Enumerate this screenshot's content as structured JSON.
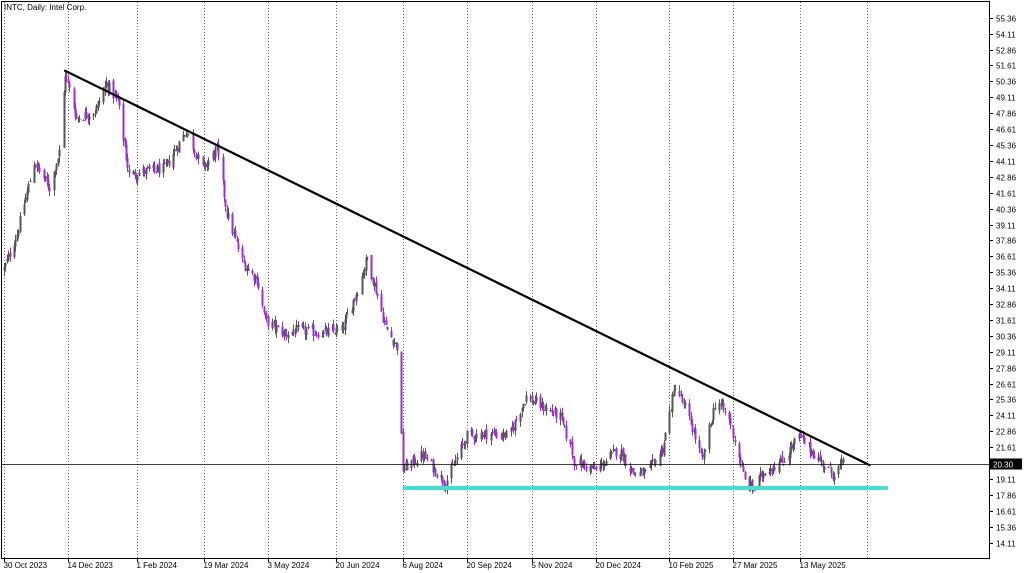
{
  "chart_data": {
    "type": "candlestick",
    "title": "INTC, Daily:  Intel Corp.",
    "xlabel": "",
    "ylabel": "",
    "ylim": [
      12.9,
      56.6
    ],
    "grid": "vertical dotted at date ticks",
    "x_ticks": [
      "30 Oct 2023",
      "14 Dec 2023",
      "1 Feb 2024",
      "19 Mar 2024",
      "3 May 2024",
      "20 Jun 2024",
      "6 Aug 2024",
      "20 Sep 2024",
      "5 Nov 2024",
      "20 Dec 2024",
      "10 Feb 2025",
      "27 Mar 2025",
      "13 May 2025"
    ],
    "y_ticks": [
      "55.36",
      "54.11",
      "52.86",
      "51.61",
      "50.36",
      "49.11",
      "47.86",
      "46.61",
      "45.36",
      "44.11",
      "42.86",
      "41.61",
      "40.36",
      "39.11",
      "37.86",
      "36.61",
      "35.36",
      "34.11",
      "32.86",
      "31.61",
      "30.36",
      "29.11",
      "27.86",
      "26.61",
      "25.36",
      "24.11",
      "22.86",
      "21.61",
      "19.11",
      "17.86",
      "16.61",
      "15.36",
      "14.11"
    ],
    "current_price": "20.30",
    "trendlines": [
      {
        "label": "descending resistance",
        "from": {
          "date": "2023-12-12",
          "price": 51.2
        },
        "to": {
          "date": "2025-07-01",
          "price": 20.2
        },
        "color": "#000000"
      },
      {
        "label": "horizontal support",
        "from": {
          "date": "2024-08-06",
          "price": 18.4
        },
        "to": {
          "date": "2025-07-14",
          "price": 18.4
        },
        "color": "#40e0d0"
      }
    ],
    "price_path": [
      {
        "date": "2023-10-30",
        "close": 35.6
      },
      {
        "date": "2023-11-08",
        "close": 38.4
      },
      {
        "date": "2023-11-20",
        "close": 44.0
      },
      {
        "date": "2023-12-01",
        "close": 42.0
      },
      {
        "date": "2023-12-08",
        "close": 44.8
      },
      {
        "date": "2023-12-12",
        "close": 51.0
      },
      {
        "date": "2023-12-20",
        "close": 47.5
      },
      {
        "date": "2024-01-02",
        "close": 48.0
      },
      {
        "date": "2024-01-10",
        "close": 50.2
      },
      {
        "date": "2024-01-18",
        "close": 48.8
      },
      {
        "date": "2024-01-26",
        "close": 43.0
      },
      {
        "date": "2024-02-02",
        "close": 43.2
      },
      {
        "date": "2024-02-20",
        "close": 43.5
      },
      {
        "date": "2024-03-06",
        "close": 46.5
      },
      {
        "date": "2024-03-18",
        "close": 43.5
      },
      {
        "date": "2024-03-28",
        "close": 45.0
      },
      {
        "date": "2024-04-04",
        "close": 40.0
      },
      {
        "date": "2024-04-15",
        "close": 36.2
      },
      {
        "date": "2024-04-25",
        "close": 34.8
      },
      {
        "date": "2024-05-01",
        "close": 31.6
      },
      {
        "date": "2024-05-15",
        "close": 30.5
      },
      {
        "date": "2024-05-24",
        "close": 30.8
      },
      {
        "date": "2024-06-10",
        "close": 30.6
      },
      {
        "date": "2024-06-24",
        "close": 30.8
      },
      {
        "date": "2024-07-05",
        "close": 34.0
      },
      {
        "date": "2024-07-12",
        "close": 36.5
      },
      {
        "date": "2024-07-25",
        "close": 31.0
      },
      {
        "date": "2024-08-02",
        "close": 29.5
      },
      {
        "date": "2024-08-06",
        "close": 19.9
      },
      {
        "date": "2024-08-20",
        "close": 21.0
      },
      {
        "date": "2024-09-05",
        "close": 18.8
      },
      {
        "date": "2024-09-20",
        "close": 22.5
      },
      {
        "date": "2024-10-05",
        "close": 22.7
      },
      {
        "date": "2024-10-20",
        "close": 22.5
      },
      {
        "date": "2024-11-01",
        "close": 25.6
      },
      {
        "date": "2024-11-12",
        "close": 24.8
      },
      {
        "date": "2024-11-25",
        "close": 24.0
      },
      {
        "date": "2024-12-05",
        "close": 20.5
      },
      {
        "date": "2024-12-20",
        "close": 19.8
      },
      {
        "date": "2025-01-05",
        "close": 21.5
      },
      {
        "date": "2025-01-15",
        "close": 19.6
      },
      {
        "date": "2025-01-25",
        "close": 19.5
      },
      {
        "date": "2025-02-05",
        "close": 21.5
      },
      {
        "date": "2025-02-14",
        "close": 26.5
      },
      {
        "date": "2025-02-25",
        "close": 23.5
      },
      {
        "date": "2025-03-05",
        "close": 20.5
      },
      {
        "date": "2025-03-15",
        "close": 25.5
      },
      {
        "date": "2025-03-25",
        "close": 23.5
      },
      {
        "date": "2025-04-04",
        "close": 19.0
      },
      {
        "date": "2025-04-10",
        "close": 18.3
      },
      {
        "date": "2025-04-18",
        "close": 19.8
      },
      {
        "date": "2025-05-01",
        "close": 20.5
      },
      {
        "date": "2025-05-12",
        "close": 22.5
      },
      {
        "date": "2025-05-25",
        "close": 20.8
      },
      {
        "date": "2025-06-05",
        "close": 19.5
      },
      {
        "date": "2025-06-12",
        "close": 20.3
      }
    ],
    "colors": {
      "bull": "#555555",
      "bear": "#9932cc",
      "grid": "#000000",
      "price_line": "#000000",
      "price_tag_bg": "#000000",
      "support": "#40e0d0",
      "resistance": "#000000"
    }
  }
}
